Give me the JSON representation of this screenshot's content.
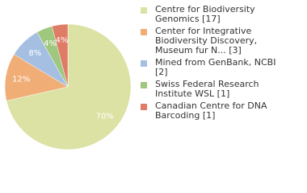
{
  "chart_data": {
    "type": "pie",
    "categories": [
      "Centre for Biodiversity Genomics [17]",
      "Center for Integrative Biodiversity Discovery, Museum fur N... [3]",
      "Mined from GenBank, NCBI [2]",
      "Swiss Federal Research Institute WSL [1]",
      "Canadian Centre for DNA Barcoding [1]"
    ],
    "values": [
      70,
      12,
      8,
      4,
      4
    ],
    "value_labels": [
      "70%",
      "12%",
      "8%",
      "4%",
      "4%"
    ],
    "colors": [
      "#dce2a3",
      "#f0ad76",
      "#a5bfe2",
      "#a0c77e",
      "#df7c66"
    ],
    "legend": "right"
  }
}
